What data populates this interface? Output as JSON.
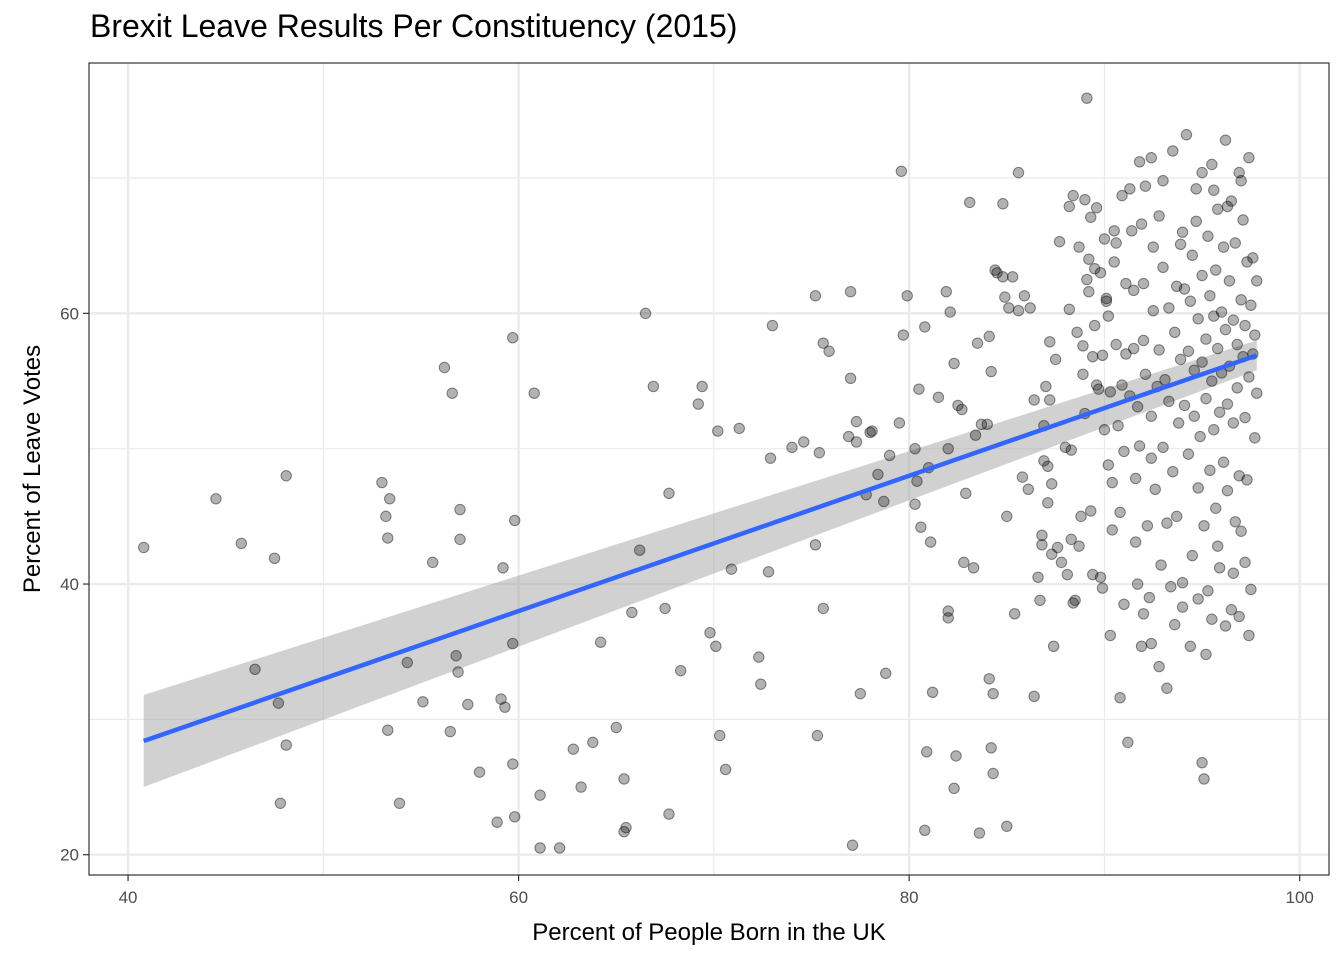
{
  "chart_data": {
    "type": "scatter",
    "title": "Brexit Leave Results Per Constituency (2015)",
    "xlabel": "Percent of People Born in the UK",
    "ylabel": "Percent of Leave Votes",
    "xlim": [
      38,
      101.5
    ],
    "ylim": [
      18.5,
      78.5
    ],
    "x_ticks": [
      40,
      60,
      80,
      100
    ],
    "y_ticks": [
      20,
      40,
      60
    ],
    "grid": true,
    "colors": {
      "points": "#000000",
      "fit_line": "#3366FF",
      "ribbon": "#999999",
      "grid": "#ebebeb"
    },
    "trend": {
      "method": "linear",
      "x": [
        40.8,
        97.8
      ],
      "y": [
        28.4,
        56.9
      ],
      "ci_lower": [
        25.0,
        55.8
      ],
      "ci_upper": [
        31.8,
        58.0
      ]
    },
    "points": [
      [
        40.8,
        42.7
      ],
      [
        44.5,
        46.3
      ],
      [
        45.8,
        43.0
      ],
      [
        46.5,
        33.7
      ],
      [
        47.5,
        41.9
      ],
      [
        47.7,
        31.2
      ],
      [
        47.8,
        23.8
      ],
      [
        48.1,
        48.0
      ],
      [
        48.1,
        28.1
      ],
      [
        53.0,
        47.5
      ],
      [
        53.2,
        45.0
      ],
      [
        53.3,
        43.4
      ],
      [
        53.4,
        46.3
      ],
      [
        53.3,
        29.2
      ],
      [
        53.9,
        23.8
      ],
      [
        54.3,
        34.2
      ],
      [
        55.1,
        31.3
      ],
      [
        55.6,
        41.6
      ],
      [
        56.2,
        56.0
      ],
      [
        56.5,
        29.1
      ],
      [
        56.6,
        54.1
      ],
      [
        56.8,
        34.7
      ],
      [
        56.9,
        33.5
      ],
      [
        57.0,
        45.5
      ],
      [
        57.0,
        43.3
      ],
      [
        57.4,
        31.1
      ],
      [
        58.0,
        26.1
      ],
      [
        58.9,
        22.4
      ],
      [
        59.1,
        31.5
      ],
      [
        59.2,
        41.2
      ],
      [
        59.3,
        30.9
      ],
      [
        59.7,
        58.2
      ],
      [
        59.7,
        35.6
      ],
      [
        59.7,
        26.7
      ],
      [
        59.8,
        22.8
      ],
      [
        59.8,
        44.7
      ],
      [
        60.8,
        54.1
      ],
      [
        61.1,
        24.4
      ],
      [
        61.1,
        20.5
      ],
      [
        62.1,
        20.5
      ],
      [
        62.8,
        27.8
      ],
      [
        63.2,
        25.0
      ],
      [
        63.8,
        28.3
      ],
      [
        64.2,
        35.7
      ],
      [
        65.0,
        29.4
      ],
      [
        65.4,
        25.6
      ],
      [
        65.4,
        21.7
      ],
      [
        65.5,
        22.0
      ],
      [
        65.8,
        37.9
      ],
      [
        66.2,
        42.5
      ],
      [
        66.5,
        60.0
      ],
      [
        66.9,
        54.6
      ],
      [
        67.5,
        38.2
      ],
      [
        67.7,
        23.0
      ],
      [
        67.7,
        46.7
      ],
      [
        68.3,
        33.6
      ],
      [
        69.2,
        53.3
      ],
      [
        69.4,
        54.6
      ],
      [
        69.8,
        36.4
      ],
      [
        70.1,
        35.4
      ],
      [
        70.2,
        51.3
      ],
      [
        70.3,
        28.8
      ],
      [
        70.6,
        26.3
      ],
      [
        70.9,
        41.1
      ],
      [
        71.3,
        51.5
      ],
      [
        72.3,
        34.6
      ],
      [
        72.4,
        32.6
      ],
      [
        72.8,
        40.9
      ],
      [
        72.9,
        49.3
      ],
      [
        73.0,
        59.1
      ],
      [
        74.0,
        50.1
      ],
      [
        74.6,
        50.5
      ],
      [
        75.2,
        61.3
      ],
      [
        75.2,
        42.9
      ],
      [
        75.3,
        28.8
      ],
      [
        75.4,
        49.7
      ],
      [
        75.6,
        38.2
      ],
      [
        75.6,
        57.8
      ],
      [
        75.9,
        57.2
      ],
      [
        77.0,
        61.6
      ],
      [
        76.9,
        50.9
      ],
      [
        77.0,
        55.2
      ],
      [
        77.1,
        20.7
      ],
      [
        77.3,
        50.5
      ],
      [
        77.3,
        52.0
      ],
      [
        77.5,
        31.9
      ],
      [
        77.8,
        46.6
      ],
      [
        78.0,
        51.2
      ],
      [
        78.1,
        51.3
      ],
      [
        78.4,
        48.1
      ],
      [
        78.7,
        46.1
      ],
      [
        78.8,
        33.4
      ],
      [
        79.0,
        49.5
      ],
      [
        79.5,
        51.9
      ],
      [
        79.6,
        70.5
      ],
      [
        79.7,
        58.4
      ],
      [
        79.9,
        61.3
      ],
      [
        80.3,
        50.0
      ],
      [
        80.3,
        45.9
      ],
      [
        80.4,
        47.6
      ],
      [
        80.5,
        54.4
      ],
      [
        80.6,
        44.2
      ],
      [
        80.8,
        59.0
      ],
      [
        80.8,
        21.8
      ],
      [
        80.9,
        27.6
      ],
      [
        81.0,
        48.6
      ],
      [
        81.1,
        43.1
      ],
      [
        81.2,
        32.0
      ],
      [
        81.5,
        53.8
      ],
      [
        81.9,
        61.6
      ],
      [
        82.0,
        38.0
      ],
      [
        82.0,
        50.0
      ],
      [
        82.0,
        37.5
      ],
      [
        82.1,
        60.1
      ],
      [
        82.3,
        56.3
      ],
      [
        82.3,
        24.9
      ],
      [
        82.4,
        27.3
      ],
      [
        82.5,
        53.2
      ],
      [
        82.7,
        52.9
      ],
      [
        82.8,
        41.6
      ],
      [
        82.9,
        46.7
      ],
      [
        83.1,
        68.2
      ],
      [
        83.3,
        41.2
      ],
      [
        83.4,
        51.0
      ],
      [
        83.5,
        57.8
      ],
      [
        83.6,
        21.6
      ],
      [
        83.7,
        51.8
      ],
      [
        84.0,
        51.8
      ],
      [
        84.2,
        55.7
      ],
      [
        84.1,
        58.3
      ],
      [
        84.1,
        33.0
      ],
      [
        84.2,
        27.9
      ],
      [
        84.3,
        26.0
      ],
      [
        84.3,
        31.9
      ],
      [
        84.4,
        63.2
      ],
      [
        84.5,
        63.0
      ],
      [
        84.8,
        62.7
      ],
      [
        84.9,
        61.2
      ],
      [
        84.8,
        68.1
      ],
      [
        85.0,
        45.0
      ],
      [
        85.0,
        22.1
      ],
      [
        85.1,
        60.4
      ],
      [
        85.3,
        62.7
      ],
      [
        85.4,
        37.8
      ],
      [
        85.6,
        70.4
      ],
      [
        85.6,
        60.2
      ],
      [
        85.8,
        47.9
      ],
      [
        85.9,
        61.3
      ],
      [
        86.1,
        47.0
      ],
      [
        86.2,
        60.4
      ],
      [
        86.4,
        31.7
      ],
      [
        86.4,
        53.6
      ],
      [
        86.6,
        40.5
      ],
      [
        86.7,
        38.8
      ],
      [
        86.8,
        42.9
      ],
      [
        86.8,
        43.6
      ],
      [
        86.9,
        51.7
      ],
      [
        86.9,
        49.1
      ],
      [
        87.1,
        48.7
      ],
      [
        87.0,
        54.6
      ],
      [
        87.1,
        46.0
      ],
      [
        87.2,
        53.6
      ],
      [
        87.2,
        57.9
      ],
      [
        87.4,
        35.4
      ],
      [
        87.5,
        56.6
      ],
      [
        87.3,
        47.4
      ],
      [
        87.3,
        42.2
      ],
      [
        87.6,
        42.7
      ],
      [
        87.7,
        65.3
      ],
      [
        87.8,
        41.6
      ],
      [
        88.0,
        50.1
      ],
      [
        88.1,
        40.7
      ],
      [
        88.2,
        67.9
      ],
      [
        88.2,
        60.3
      ],
      [
        88.3,
        43.3
      ],
      [
        88.3,
        49.9
      ],
      [
        88.4,
        68.7
      ],
      [
        88.4,
        38.6
      ],
      [
        88.5,
        38.8
      ],
      [
        88.6,
        58.6
      ],
      [
        88.7,
        64.9
      ],
      [
        88.7,
        42.8
      ],
      [
        88.8,
        45.0
      ],
      [
        88.9,
        57.6
      ],
      [
        88.9,
        55.5
      ],
      [
        89.0,
        68.4
      ],
      [
        89.0,
        52.6
      ],
      [
        89.1,
        75.9
      ],
      [
        89.1,
        62.5
      ],
      [
        89.2,
        61.6
      ],
      [
        89.2,
        64.0
      ],
      [
        89.3,
        67.1
      ],
      [
        89.3,
        45.4
      ],
      [
        89.4,
        56.8
      ],
      [
        89.4,
        40.7
      ],
      [
        89.5,
        63.3
      ],
      [
        89.5,
        59.1
      ],
      [
        89.6,
        54.7
      ],
      [
        89.6,
        67.8
      ],
      [
        89.7,
        54.4
      ],
      [
        89.8,
        63.0
      ],
      [
        89.8,
        40.5
      ],
      [
        89.9,
        56.9
      ],
      [
        89.9,
        39.7
      ],
      [
        90.0,
        51.4
      ],
      [
        90.0,
        65.5
      ],
      [
        90.1,
        60.9
      ],
      [
        90.1,
        61.1
      ],
      [
        90.2,
        48.8
      ],
      [
        90.2,
        59.8
      ],
      [
        90.3,
        36.2
      ],
      [
        90.3,
        54.2
      ],
      [
        90.4,
        44.0
      ],
      [
        90.4,
        47.5
      ],
      [
        90.5,
        63.8
      ],
      [
        90.5,
        66.1
      ],
      [
        90.6,
        57.7
      ],
      [
        90.7,
        51.7
      ],
      [
        90.8,
        31.6
      ],
      [
        90.8,
        45.3
      ],
      [
        90.9,
        54.7
      ],
      [
        90.9,
        68.7
      ],
      [
        91.0,
        38.5
      ],
      [
        91.0,
        49.8
      ],
      [
        91.1,
        62.2
      ],
      [
        91.1,
        57.0
      ],
      [
        91.2,
        28.3
      ],
      [
        91.3,
        69.2
      ],
      [
        91.3,
        53.9
      ],
      [
        91.4,
        66.1
      ],
      [
        91.5,
        61.7
      ],
      [
        91.5,
        57.4
      ],
      [
        91.6,
        43.1
      ],
      [
        91.6,
        47.8
      ],
      [
        91.7,
        40.0
      ],
      [
        91.7,
        53.1
      ],
      [
        91.8,
        50.2
      ],
      [
        91.8,
        71.2
      ],
      [
        91.9,
        35.4
      ],
      [
        92.0,
        58.0
      ],
      [
        92.0,
        62.2
      ],
      [
        92.1,
        55.5
      ],
      [
        92.1,
        69.4
      ],
      [
        92.2,
        44.3
      ],
      [
        92.3,
        39.0
      ],
      [
        92.4,
        52.4
      ],
      [
        92.4,
        49.3
      ],
      [
        92.5,
        64.9
      ],
      [
        92.5,
        60.2
      ],
      [
        92.6,
        47.0
      ],
      [
        92.7,
        54.6
      ],
      [
        92.8,
        57.3
      ],
      [
        92.8,
        67.2
      ],
      [
        92.9,
        41.4
      ],
      [
        93.0,
        50.1
      ],
      [
        93.0,
        63.4
      ],
      [
        93.1,
        55.1
      ],
      [
        93.2,
        44.5
      ],
      [
        93.3,
        60.4
      ],
      [
        93.3,
        53.5
      ],
      [
        93.4,
        39.8
      ],
      [
        93.5,
        72.0
      ],
      [
        93.5,
        48.3
      ],
      [
        93.6,
        58.6
      ],
      [
        93.7,
        62.0
      ],
      [
        93.7,
        45.0
      ],
      [
        93.8,
        51.9
      ],
      [
        93.9,
        56.6
      ],
      [
        94.0,
        66.0
      ],
      [
        94.0,
        38.3
      ],
      [
        94.1,
        61.8
      ],
      [
        94.1,
        53.2
      ],
      [
        94.2,
        73.2
      ],
      [
        94.3,
        49.6
      ],
      [
        94.3,
        57.2
      ],
      [
        94.4,
        60.9
      ],
      [
        94.5,
        64.3
      ],
      [
        94.5,
        42.1
      ],
      [
        94.6,
        52.4
      ],
      [
        94.6,
        55.8
      ],
      [
        94.7,
        69.2
      ],
      [
        94.8,
        59.6
      ],
      [
        94.8,
        47.1
      ],
      [
        94.9,
        50.9
      ],
      [
        95.0,
        62.8
      ],
      [
        95.0,
        56.4
      ],
      [
        95.0,
        26.8
      ],
      [
        95.1,
        44.3
      ],
      [
        95.1,
        25.6
      ],
      [
        95.2,
        58.1
      ],
      [
        95.2,
        53.7
      ],
      [
        95.3,
        39.5
      ],
      [
        95.3,
        65.7
      ],
      [
        95.4,
        61.3
      ],
      [
        95.4,
        48.4
      ],
      [
        95.5,
        55.0
      ],
      [
        95.5,
        71.0
      ],
      [
        95.6,
        51.4
      ],
      [
        95.6,
        59.8
      ],
      [
        95.7,
        63.2
      ],
      [
        95.7,
        45.6
      ],
      [
        95.8,
        57.4
      ],
      [
        95.8,
        67.7
      ],
      [
        95.9,
        52.7
      ],
      [
        95.9,
        41.2
      ],
      [
        96.0,
        60.1
      ],
      [
        96.0,
        55.6
      ],
      [
        96.1,
        64.9
      ],
      [
        96.1,
        49.0
      ],
      [
        96.2,
        58.8
      ],
      [
        96.2,
        72.8
      ],
      [
        96.3,
        53.3
      ],
      [
        96.3,
        46.9
      ],
      [
        96.4,
        62.4
      ],
      [
        96.4,
        56.1
      ],
      [
        96.5,
        68.3
      ],
      [
        96.5,
        38.1
      ],
      [
        96.6,
        51.9
      ],
      [
        96.6,
        59.5
      ],
      [
        96.7,
        44.6
      ],
      [
        96.7,
        65.2
      ],
      [
        96.8,
        57.7
      ],
      [
        96.8,
        54.5
      ],
      [
        96.9,
        70.4
      ],
      [
        96.9,
        48.0
      ],
      [
        97.0,
        61.0
      ],
      [
        97.0,
        43.9
      ],
      [
        97.1,
        56.8
      ],
      [
        97.1,
        66.9
      ],
      [
        97.2,
        52.3
      ],
      [
        97.2,
        59.1
      ],
      [
        97.3,
        63.8
      ],
      [
        97.3,
        47.7
      ],
      [
        97.4,
        55.3
      ],
      [
        97.4,
        71.5
      ],
      [
        97.5,
        60.6
      ],
      [
        97.5,
        39.6
      ],
      [
        97.6,
        57.0
      ],
      [
        97.6,
        64.1
      ],
      [
        97.7,
        50.8
      ],
      [
        97.7,
        58.4
      ],
      [
        97.8,
        62.4
      ],
      [
        97.8,
        54.1
      ],
      [
        97.4,
        36.2
      ],
      [
        97.2,
        41.6
      ],
      [
        96.9,
        37.6
      ],
      [
        96.6,
        40.8
      ],
      [
        96.2,
        36.9
      ],
      [
        95.8,
        42.8
      ],
      [
        95.5,
        37.4
      ],
      [
        95.2,
        34.8
      ],
      [
        94.8,
        38.9
      ],
      [
        94.4,
        35.4
      ],
      [
        94.0,
        40.1
      ],
      [
        93.6,
        37.0
      ],
      [
        93.2,
        32.3
      ],
      [
        92.8,
        33.9
      ],
      [
        92.4,
        35.6
      ],
      [
        92.0,
        37.8
      ],
      [
        93.9,
        65.1
      ],
      [
        94.7,
        66.8
      ],
      [
        95.6,
        69.1
      ],
      [
        96.3,
        67.9
      ],
      [
        97.0,
        69.8
      ],
      [
        95.0,
        70.4
      ],
      [
        93.0,
        69.8
      ],
      [
        92.4,
        71.5
      ],
      [
        91.9,
        66.6
      ],
      [
        90.6,
        65.2
      ]
    ]
  }
}
